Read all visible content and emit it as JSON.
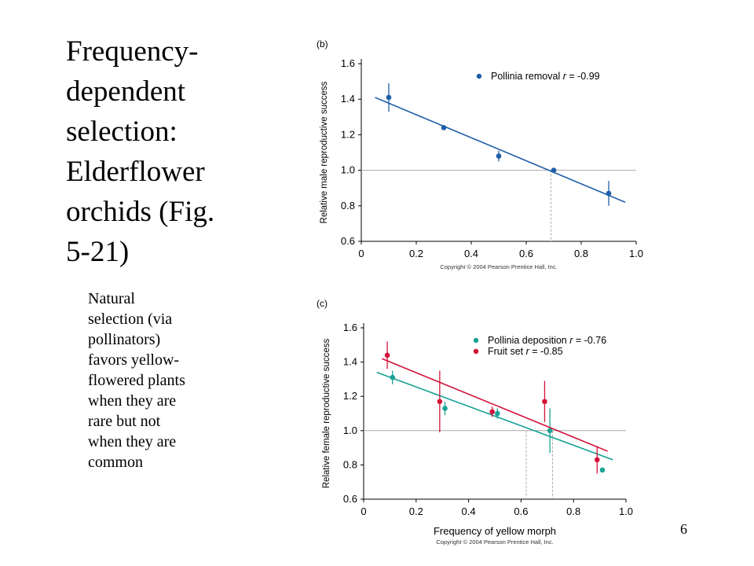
{
  "slide": {
    "title": "Frequency-dependent selection: Elderflower orchids (Fig. 5-21)",
    "title_lines": [
      "Frequency-",
      "dependent",
      "selection:",
      "Elderflower",
      "orchids (Fig.",
      "5-21)"
    ],
    "body_lines": [
      "Natural",
      "selection (via",
      "pollinators)",
      "favors yellow-",
      "flowered plants",
      "when they are",
      "rare but not",
      "when they are",
      "common"
    ],
    "slide_number": "6"
  },
  "colors": {
    "blue": "#1f5fa8",
    "red": "#d2143a",
    "teal": "#1aa394",
    "ref": "#aaaaaa"
  },
  "chart_data": [
    {
      "type": "scatter",
      "panel_label": "(b)",
      "ylabel": "Relative male reproductive success",
      "xlabel": "",
      "xlim": [
        0,
        1.0
      ],
      "ylim": [
        0.6,
        1.6
      ],
      "xticks": [
        "0",
        "0.2",
        "0.4",
        "0.6",
        "0.8",
        "1.0"
      ],
      "yticks": [
        "0.6",
        "0.8",
        "1.0",
        "1.2",
        "1.4",
        "1.6"
      ],
      "copyright": "Copyright © 2004 Pearson Prentice Hall, Inc.",
      "reference_line_y": 1.0,
      "reference_x": [
        0.69
      ],
      "legend_position": "top-right",
      "series": [
        {
          "name": "Pollinia removal",
          "stat_label": "r",
          "stat_value": " = -0.99",
          "color": "#1f5fa8",
          "points": [
            {
              "x": 0.1,
              "y": 1.41,
              "err": 0.08
            },
            {
              "x": 0.3,
              "y": 1.24,
              "err": 0.01
            },
            {
              "x": 0.5,
              "y": 1.08,
              "err": 0.03
            },
            {
              "x": 0.7,
              "y": 1.0,
              "err": 0.01
            },
            {
              "x": 0.9,
              "y": 0.87,
              "err": 0.07
            }
          ],
          "fit": [
            [
              0.05,
              1.41
            ],
            [
              0.96,
              0.82
            ]
          ]
        }
      ]
    },
    {
      "type": "scatter",
      "panel_label": "(c)",
      "ylabel": "Relative female reproductive success",
      "xlabel": "Frequency of yellow morph",
      "xlim": [
        0,
        1.0
      ],
      "ylim": [
        0.6,
        1.6
      ],
      "xticks": [
        "0",
        "0.2",
        "0.4",
        "0.6",
        "0.8",
        "1.0"
      ],
      "yticks": [
        "0.6",
        "0.8",
        "1.0",
        "1.2",
        "1.4",
        "1.6"
      ],
      "copyright": "Copyright © 2004 Pearson Prentice Hall, Inc.",
      "reference_line_y": 1.0,
      "reference_x": [
        0.62,
        0.72
      ],
      "legend_position": "top-right",
      "series": [
        {
          "name": "Pollinia deposition",
          "stat_label": "r",
          "stat_value": " = -0.76",
          "color": "#1aa394",
          "points": [
            {
              "x": 0.11,
              "y": 1.31,
              "err": 0.04
            },
            {
              "x": 0.31,
              "y": 1.13,
              "err": 0.04
            },
            {
              "x": 0.51,
              "y": 1.1,
              "err": 0.03
            },
            {
              "x": 0.71,
              "y": 1.0,
              "err": 0.13
            },
            {
              "x": 0.91,
              "y": 0.77,
              "err": 0.0
            }
          ],
          "fit": [
            [
              0.05,
              1.34
            ],
            [
              0.95,
              0.83
            ]
          ]
        },
        {
          "name": "Fruit set",
          "stat_label": "r",
          "stat_value": " = -0.85",
          "color": "#d2143a",
          "points": [
            {
              "x": 0.09,
              "y": 1.44,
              "err": 0.08
            },
            {
              "x": 0.29,
              "y": 1.17,
              "err": 0.18
            },
            {
              "x": 0.49,
              "y": 1.11,
              "err": 0.03
            },
            {
              "x": 0.69,
              "y": 1.17,
              "err": 0.12
            },
            {
              "x": 0.89,
              "y": 0.83,
              "err": 0.08
            }
          ],
          "fit": [
            [
              0.07,
              1.42
            ],
            [
              0.93,
              0.88
            ]
          ]
        }
      ]
    }
  ]
}
